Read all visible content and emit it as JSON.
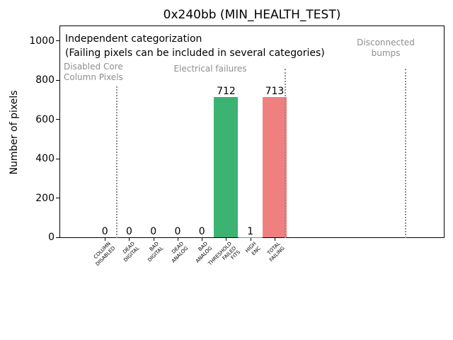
{
  "chart_data": {
    "type": "bar",
    "title": "0x240bb (MIN_HEALTH_TEST)",
    "ylabel": "Number of pixels",
    "xlabel": "",
    "ylim": [
      0,
      1080
    ],
    "yticks": [
      0,
      200,
      400,
      600,
      800,
      1000
    ],
    "grid": false,
    "legend": "none",
    "categories": [
      "COLUMN\nDISABLED",
      "DEAD\nDIGITAL",
      "BAD\nDIGITAL",
      "DEAD\nANALOG",
      "BAD\nANALOG",
      "THRESHOLD\nFAILED\nFITS",
      "HIGH\nENC",
      "TOTAL\nFAILING"
    ],
    "values": [
      0,
      0,
      0,
      0,
      0,
      712,
      1,
      713
    ],
    "bar_value_labels": [
      "0",
      "0",
      "0",
      "0",
      "0",
      "712",
      "1",
      "713"
    ],
    "bar_colors": [
      "#3cb371",
      "#3cb371",
      "#3cb371",
      "#3cb371",
      "#3cb371",
      "#3cb371",
      "#3cb371",
      "#f08080"
    ],
    "note_lines": [
      "Independent categorization",
      "(Failing pixels can be included in several categories)"
    ],
    "sections": [
      {
        "label": "Disabled Core\nColumn Pixels"
      },
      {
        "label": "Electrical failures"
      },
      {
        "label": "Disconnected\nbumps"
      }
    ],
    "colors": {
      "bar_green": "#3cb371",
      "bar_red": "#f08080",
      "section_text_gray": "#8e8e8e",
      "separator_gray": "#8f8f8f",
      "axis_black": "#000000"
    }
  }
}
